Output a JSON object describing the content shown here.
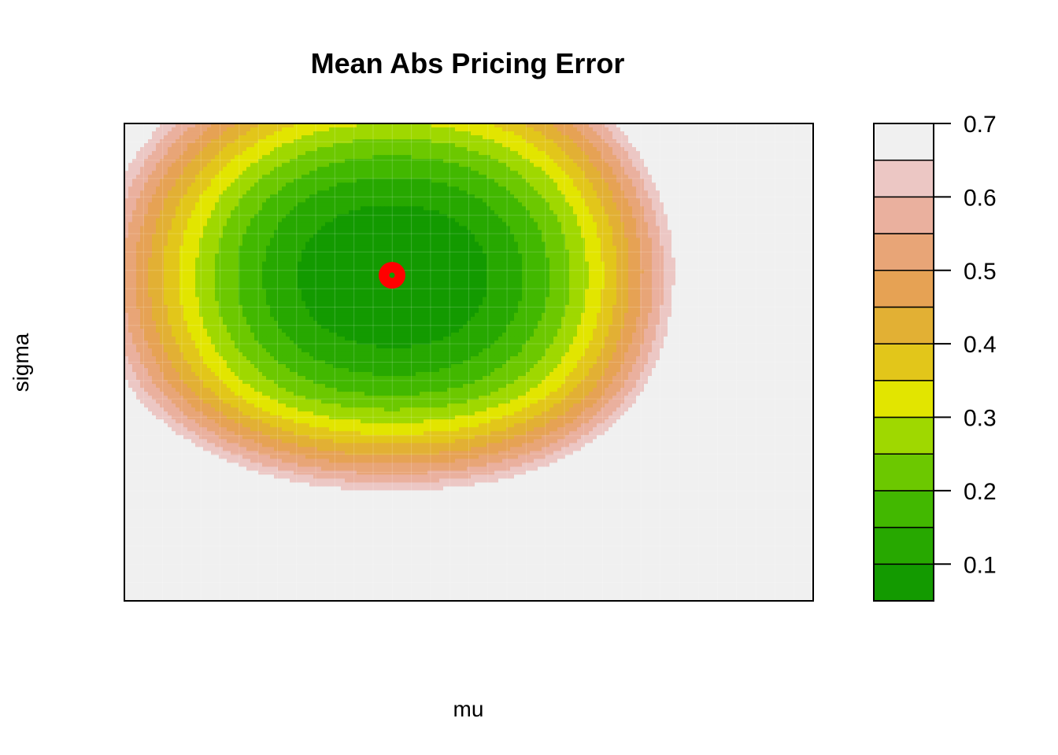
{
  "chart_data": {
    "type": "contour",
    "title": "Mean Abs Pricing Error",
    "xlabel": "mu",
    "ylabel": "sigma",
    "zlim": [
      0.05,
      0.7
    ],
    "levels": [
      0.05,
      0.1,
      0.15,
      0.2,
      0.25,
      0.3,
      0.35,
      0.4,
      0.45,
      0.5,
      0.55,
      0.6,
      0.65,
      0.7
    ],
    "level_colors": [
      "#139a00",
      "#27a800",
      "#42b800",
      "#6cc800",
      "#9fd800",
      "#e2e500",
      "#e2c61a",
      "#e2b034",
      "#e6a254",
      "#e8a577",
      "#eab09e",
      "#ecc7c4",
      "#f0f0f0"
    ],
    "colorbar_ticks": [
      "0.1",
      "0.2",
      "0.3",
      "0.4",
      "0.5",
      "0.6",
      "0.7"
    ],
    "colorbar_tick_values": [
      0.1,
      0.2,
      0.3,
      0.4,
      0.5,
      0.6,
      0.7
    ],
    "minimum_marker": {
      "color": "#ff0000",
      "inner_color": "#139a00"
    },
    "grid": true
  }
}
